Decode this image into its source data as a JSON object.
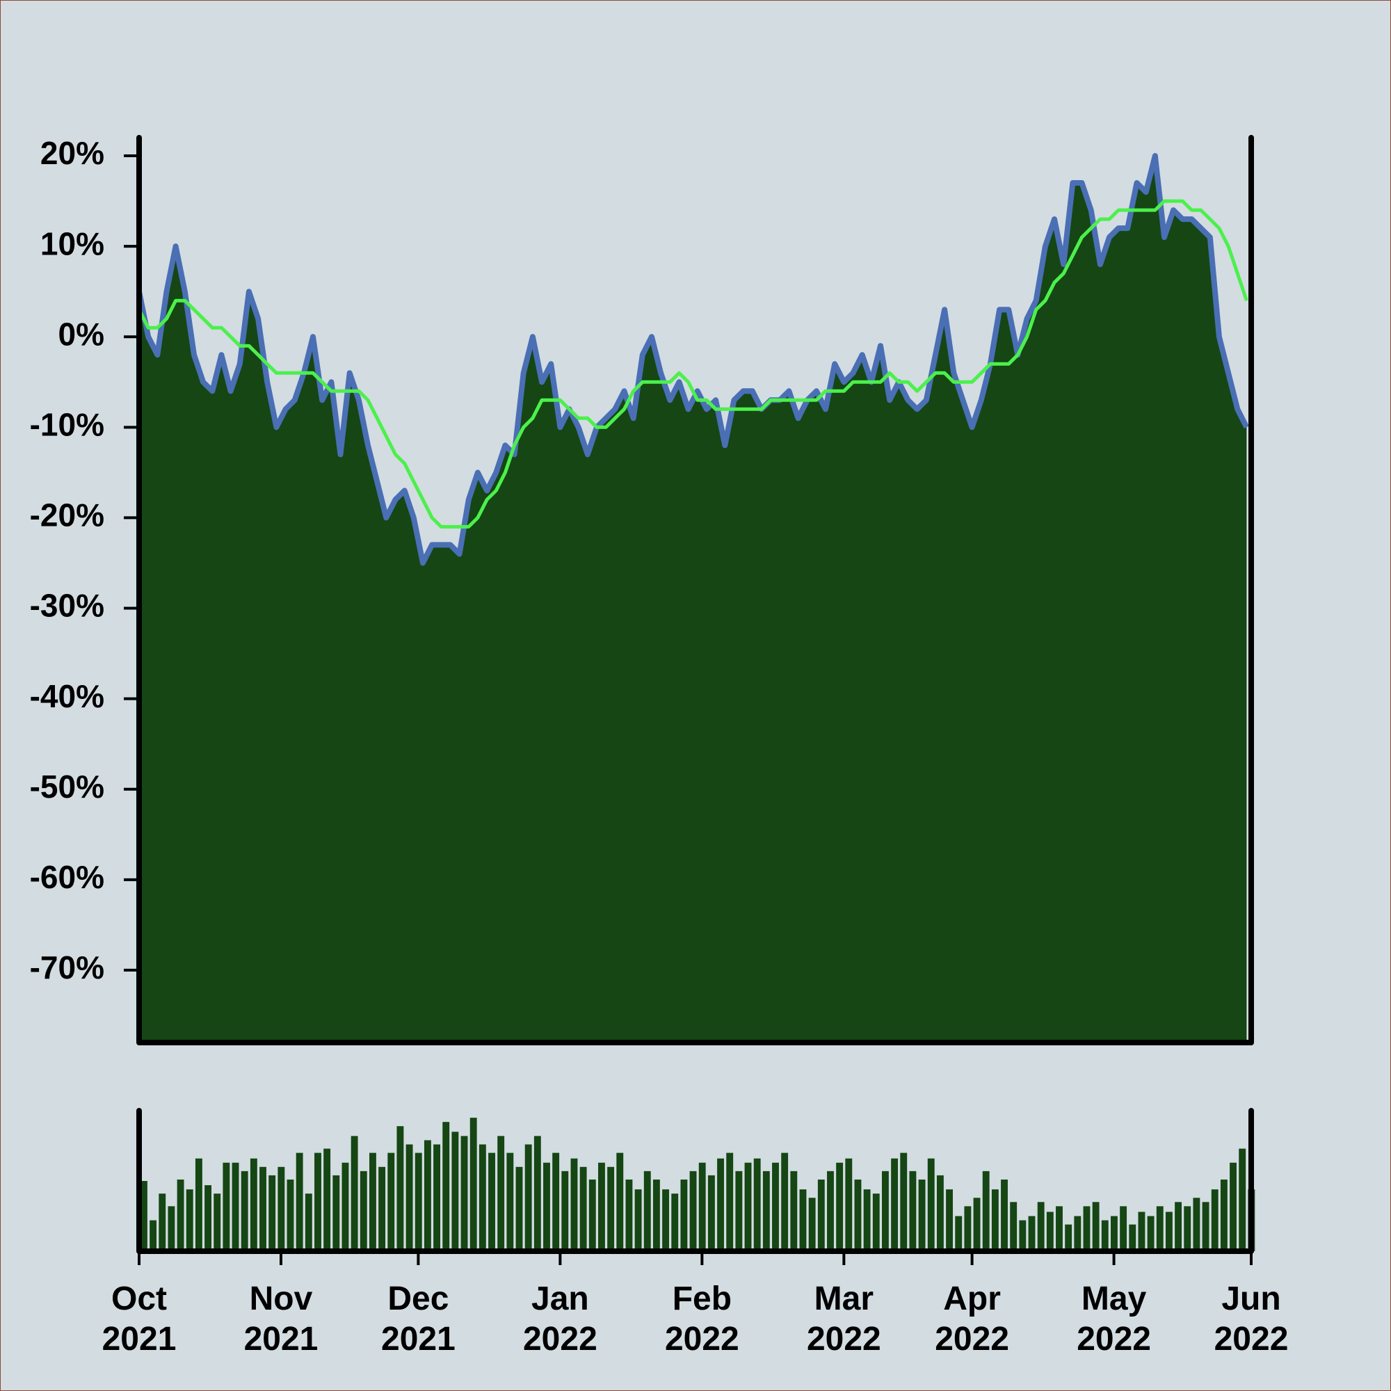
{
  "chart_data": [
    {
      "type": "line",
      "xlim": [
        0,
        121.5
      ],
      "ylim": [
        -78,
        22
      ],
      "yticks": [
        {
          "value": 20,
          "label": "20%"
        },
        {
          "value": 10,
          "label": "10%"
        },
        {
          "value": 0,
          "label": "0%"
        },
        {
          "value": -10,
          "label": "-10%"
        },
        {
          "value": -20,
          "label": "-20%"
        },
        {
          "value": -30,
          "label": "-30%"
        },
        {
          "value": -40,
          "label": "-40%"
        },
        {
          "value": -50,
          "label": "-50%"
        },
        {
          "value": -60,
          "label": "-60%"
        },
        {
          "value": -70,
          "label": "-70%"
        }
      ],
      "series": [
        {
          "color": "#4a6fb5",
          "fill": "#154614",
          "values": [
            5,
            0,
            -2,
            5,
            10,
            5,
            -2,
            -5,
            -6,
            -2,
            -6,
            -3,
            5,
            2,
            -5,
            -10,
            -8,
            -7,
            -4,
            0,
            -7,
            -5,
            -13,
            -4,
            -7,
            -12,
            -16,
            -20,
            -18,
            -17,
            -20,
            -25,
            -23,
            -23,
            -23,
            -24,
            -18,
            -15,
            -17,
            -15,
            -12,
            -13,
            -4,
            0,
            -5,
            -3,
            -10,
            -8,
            -10,
            -13,
            -10,
            -9,
            -8,
            -6,
            -9,
            -2,
            0,
            -4,
            -7,
            -5,
            -8,
            -6,
            -8,
            -7,
            -12,
            -7,
            -6,
            -6,
            -8,
            -7,
            -7,
            -6,
            -9,
            -7,
            -6,
            -8,
            -3,
            -5,
            -4,
            -2,
            -5,
            -1,
            -7,
            -5,
            -7,
            -8,
            -7,
            -2,
            3,
            -4,
            -7,
            -10,
            -7,
            -3,
            3,
            3,
            -2,
            2,
            4,
            10,
            13,
            8,
            17,
            17,
            14,
            8,
            11,
            12,
            12,
            17,
            16,
            20,
            11,
            14,
            13,
            13,
            12,
            11,
            0,
            -4,
            -8,
            -10
          ]
        },
        {
          "color": "#4cf04c",
          "values": [
            3,
            1,
            1,
            2,
            4,
            4,
            3,
            2,
            1,
            1,
            0,
            -1,
            -1,
            -2,
            -3,
            -4,
            -4,
            -4,
            -4,
            -4,
            -5,
            -6,
            -6,
            -6,
            -6,
            -7,
            -9,
            -11,
            -13,
            -14,
            -16,
            -18,
            -20,
            -21,
            -21,
            -21,
            -21,
            -20,
            -18,
            -17,
            -15,
            -12,
            -10,
            -9,
            -7,
            -7,
            -7,
            -8,
            -9,
            -9,
            -10,
            -10,
            -9,
            -8,
            -6,
            -5,
            -5,
            -5,
            -5,
            -4,
            -5,
            -7,
            -7,
            -8,
            -8,
            -8,
            -8,
            -8,
            -8,
            -7,
            -7,
            -7,
            -7,
            -7,
            -7,
            -6,
            -6,
            -6,
            -5,
            -5,
            -5,
            -5,
            -4,
            -5,
            -5,
            -6,
            -5,
            -4,
            -4,
            -5,
            -5,
            -5,
            -4,
            -3,
            -3,
            -3,
            -2,
            0,
            3,
            4,
            6,
            7,
            9,
            11,
            12,
            13,
            13,
            14,
            14,
            14,
            14,
            14,
            15,
            15,
            15,
            14,
            14,
            13,
            12,
            10,
            7,
            4
          ]
        }
      ]
    },
    {
      "type": "bar",
      "xlim": [
        0,
        121.5
      ],
      "ylim": [
        0,
        100
      ],
      "color": "#154614",
      "xticks": [
        {
          "value": 0,
          "label": "Oct 2021"
        },
        {
          "value": 15.5,
          "label": "Nov 2021"
        },
        {
          "value": 30.5,
          "label": "Dec 2021"
        },
        {
          "value": 46,
          "label": "Jan 2022"
        },
        {
          "value": 61.5,
          "label": "Feb 2022"
        },
        {
          "value": 77,
          "label": "Mar 2022"
        },
        {
          "value": 91,
          "label": "Apr 2022"
        },
        {
          "value": 106.5,
          "label": "May 2022"
        },
        {
          "value": 121.5,
          "label": "Jun 2022"
        }
      ],
      "values": [
        50,
        22,
        41,
        32,
        51,
        44,
        66,
        47,
        41,
        63,
        63,
        57,
        66,
        60,
        54,
        60,
        51,
        70,
        41,
        70,
        73,
        54,
        63,
        82,
        57,
        70,
        60,
        70,
        89,
        76,
        70,
        79,
        76,
        92,
        85,
        82,
        95,
        76,
        70,
        82,
        70,
        60,
        76,
        82,
        63,
        70,
        57,
        66,
        60,
        51,
        63,
        60,
        70,
        51,
        44,
        57,
        51,
        44,
        41,
        51,
        57,
        63,
        54,
        66,
        70,
        57,
        63,
        66,
        57,
        63,
        70,
        57,
        44,
        38,
        51,
        57,
        63,
        66,
        51,
        44,
        41,
        57,
        66,
        70,
        57,
        51,
        66,
        54,
        44,
        25,
        32,
        38,
        57,
        44,
        51,
        35,
        22,
        25,
        35,
        28,
        32,
        19,
        25,
        32,
        35,
        22,
        25,
        32,
        19,
        28,
        25,
        32,
        28,
        35,
        32,
        38,
        35,
        44,
        51,
        63,
        73,
        44
      ]
    }
  ]
}
